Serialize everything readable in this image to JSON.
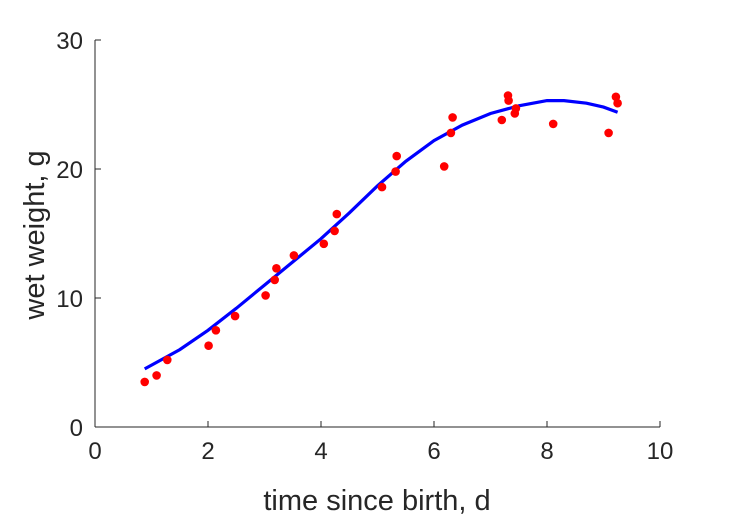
{
  "chart_data": {
    "type": "scatter",
    "title": "",
    "xlabel": "time since birth, d",
    "ylabel": "wet weight, g",
    "xlim": [
      0,
      10
    ],
    "ylim": [
      0,
      30
    ],
    "xticks": [
      0,
      2,
      4,
      6,
      8,
      10
    ],
    "yticks": [
      0,
      10,
      20,
      30
    ],
    "grid": false,
    "legend": "none",
    "series": [
      {
        "type": "scatter",
        "color": "#ff0000",
        "x": [
          0.88,
          1.09,
          1.28,
          2.01,
          2.14,
          2.48,
          3.02,
          3.18,
          3.21,
          3.52,
          4.05,
          4.24,
          4.28,
          5.08,
          5.32,
          5.34,
          6.18,
          6.3,
          6.33,
          7.2,
          7.31,
          7.32,
          7.43,
          7.45,
          8.11,
          9.09,
          9.22,
          9.25
        ],
        "y": [
          3.5,
          4.0,
          5.2,
          6.3,
          7.5,
          8.6,
          10.2,
          11.4,
          12.3,
          13.3,
          14.2,
          15.2,
          16.5,
          18.6,
          19.8,
          21.0,
          20.2,
          22.8,
          24.0,
          23.8,
          25.7,
          25.3,
          24.3,
          24.7,
          23.5,
          22.8,
          25.6,
          25.1
        ]
      },
      {
        "type": "line",
        "color": "#0000ff",
        "x": [
          0.88,
          1.5,
          2.0,
          2.5,
          3.0,
          3.5,
          4.0,
          4.5,
          5.0,
          5.5,
          6.0,
          6.5,
          7.0,
          7.5,
          8.0,
          8.3,
          8.7,
          9.0,
          9.25
        ],
        "y": [
          4.5,
          6.0,
          7.5,
          9.2,
          11.0,
          12.8,
          14.6,
          16.6,
          18.7,
          20.6,
          22.2,
          23.4,
          24.3,
          24.9,
          25.3,
          25.3,
          25.1,
          24.8,
          24.4
        ]
      }
    ]
  }
}
